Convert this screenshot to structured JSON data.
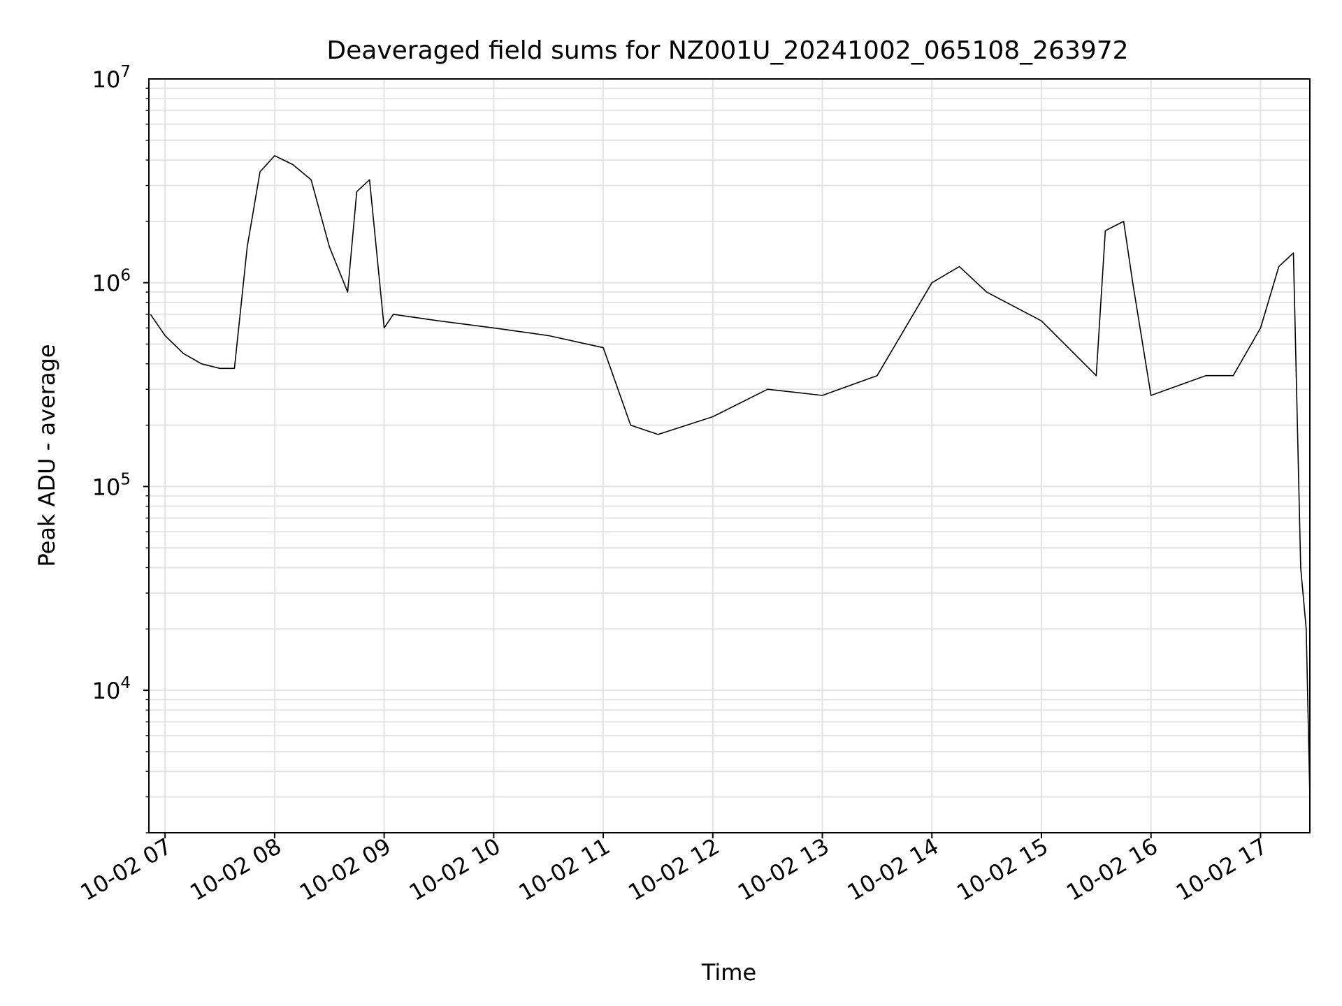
{
  "chart_data": {
    "type": "line",
    "title": "Deaveraged field sums for NZ001U_20241002_065108_263972",
    "xlabel": "Time",
    "ylabel": "Peak ADU - average",
    "y_scale": "log",
    "ylim": [
      2000,
      10000000
    ],
    "xlim": [
      "2024-10-02 06:51:08",
      "2024-10-02 17:27:00"
    ],
    "grid": true,
    "legend": "none",
    "line_color": "#000000",
    "x_tick_labels": [
      {
        "value": "2024-10-02 07:00",
        "label": "10-02 07"
      },
      {
        "value": "2024-10-02 08:00",
        "label": "10-02 08"
      },
      {
        "value": "2024-10-02 09:00",
        "label": "10-02 09"
      },
      {
        "value": "2024-10-02 10:00",
        "label": "10-02 10"
      },
      {
        "value": "2024-10-02 11:00",
        "label": "10-02 11"
      },
      {
        "value": "2024-10-02 12:00",
        "label": "10-02 12"
      },
      {
        "value": "2024-10-02 13:00",
        "label": "10-02 13"
      },
      {
        "value": "2024-10-02 14:00",
        "label": "10-02 14"
      },
      {
        "value": "2024-10-02 15:00",
        "label": "10-02 15"
      },
      {
        "value": "2024-10-02 16:00",
        "label": "10-02 16"
      },
      {
        "value": "2024-10-02 17:00",
        "label": "10-02 17"
      }
    ],
    "y_tick_labels": [
      {
        "value": 10000,
        "label": "10",
        "exp": "4"
      },
      {
        "value": 100000,
        "label": "10",
        "exp": "5"
      },
      {
        "value": 1000000,
        "label": "10",
        "exp": "6"
      },
      {
        "value": 10000000,
        "label": "10",
        "exp": "7"
      }
    ],
    "series": [
      {
        "x": [
          "2024-10-02 06:52",
          "2024-10-02 07:00",
          "2024-10-02 07:10",
          "2024-10-02 07:20",
          "2024-10-02 07:30",
          "2024-10-02 07:38",
          "2024-10-02 07:45",
          "2024-10-02 07:52",
          "2024-10-02 08:00",
          "2024-10-02 08:10",
          "2024-10-02 08:20",
          "2024-10-02 08:30",
          "2024-10-02 08:40",
          "2024-10-02 08:45",
          "2024-10-02 08:52",
          "2024-10-02 09:00",
          "2024-10-02 09:05",
          "2024-10-02 09:30",
          "2024-10-02 10:00",
          "2024-10-02 10:30",
          "2024-10-02 11:00",
          "2024-10-02 11:15",
          "2024-10-02 11:30",
          "2024-10-02 12:00",
          "2024-10-02 12:30",
          "2024-10-02 13:00",
          "2024-10-02 13:30",
          "2024-10-02 14:00",
          "2024-10-02 14:15",
          "2024-10-02 14:30",
          "2024-10-02 15:00",
          "2024-10-02 15:30",
          "2024-10-02 15:35",
          "2024-10-02 15:45",
          "2024-10-02 15:50",
          "2024-10-02 16:00",
          "2024-10-02 16:30",
          "2024-10-02 16:45",
          "2024-10-02 17:00",
          "2024-10-02 17:10",
          "2024-10-02 17:18",
          "2024-10-02 17:22",
          "2024-10-02 17:25",
          "2024-10-02 17:27"
        ],
        "values": [
          700000,
          550000,
          450000,
          400000,
          380000,
          380000,
          1500000,
          3500000,
          4200000,
          3800000,
          3200000,
          1500000,
          900000,
          2800000,
          3200000,
          600000,
          700000,
          650000,
          600000,
          550000,
          480000,
          200000,
          180000,
          220000,
          300000,
          280000,
          350000,
          1000000,
          1200000,
          900000,
          650000,
          350000,
          1800000,
          2000000,
          1000000,
          280000,
          350000,
          350000,
          600000,
          1200000,
          1400000,
          40000,
          20000,
          3000
        ]
      }
    ]
  }
}
